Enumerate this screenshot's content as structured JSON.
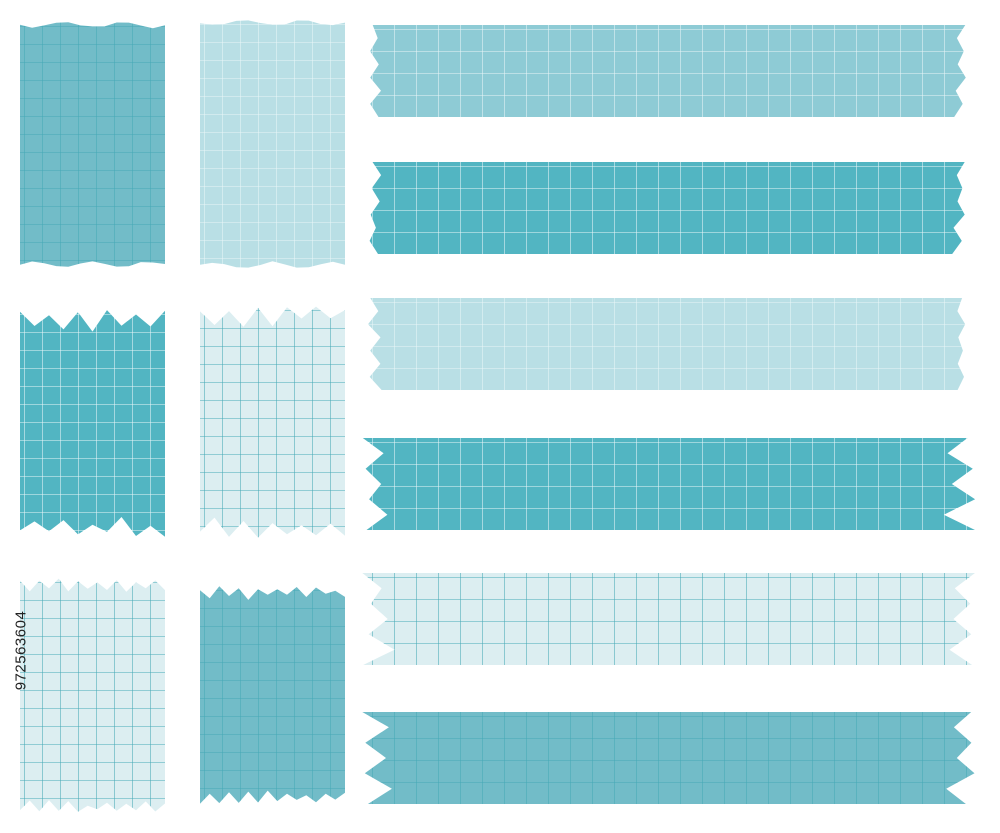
{
  "image_id_label": "972563604",
  "palette": {
    "light": "#dceef1",
    "pale": "#b9dfe5",
    "mid": "#8ecbd5",
    "medium": "#72bcc8",
    "dark": "#52b5c2"
  },
  "grid_styles": {
    "on_dark": "#e9f6f8",
    "on_light": "#45a9b6"
  },
  "tapes": [
    {
      "name": "tape-vertical-1",
      "fill": "medium",
      "grid": "on_light",
      "edge": "wavy"
    },
    {
      "name": "tape-vertical-2",
      "fill": "pale",
      "grid": "on_dark",
      "edge": "wavy"
    },
    {
      "name": "tape-horizontal-1",
      "fill": "mid",
      "grid": "on_dark",
      "edge": "zigzag-small"
    },
    {
      "name": "tape-horizontal-2",
      "fill": "dark",
      "grid": "on_dark",
      "edge": "zigzag-small"
    },
    {
      "name": "tape-vertical-3",
      "fill": "dark",
      "grid": "on_dark",
      "edge": "jagged"
    },
    {
      "name": "tape-vertical-4",
      "fill": "light",
      "grid": "on_light",
      "edge": "jagged"
    },
    {
      "name": "tape-horizontal-3",
      "fill": "pale",
      "grid": "on_dark",
      "edge": "zigzag-small"
    },
    {
      "name": "tape-horizontal-4",
      "fill": "dark",
      "grid": "on_dark",
      "edge": "zigzag-deep"
    },
    {
      "name": "tape-vertical-5",
      "fill": "light",
      "grid": "on_light",
      "edge": "torn"
    },
    {
      "name": "tape-vertical-6",
      "fill": "medium",
      "grid": "on_light",
      "edge": "torn"
    },
    {
      "name": "tape-horizontal-5",
      "fill": "light",
      "grid": "on_light",
      "edge": "zigzag-deep"
    },
    {
      "name": "tape-horizontal-6",
      "fill": "medium",
      "grid": "on_light",
      "edge": "zigzag-deep"
    }
  ]
}
